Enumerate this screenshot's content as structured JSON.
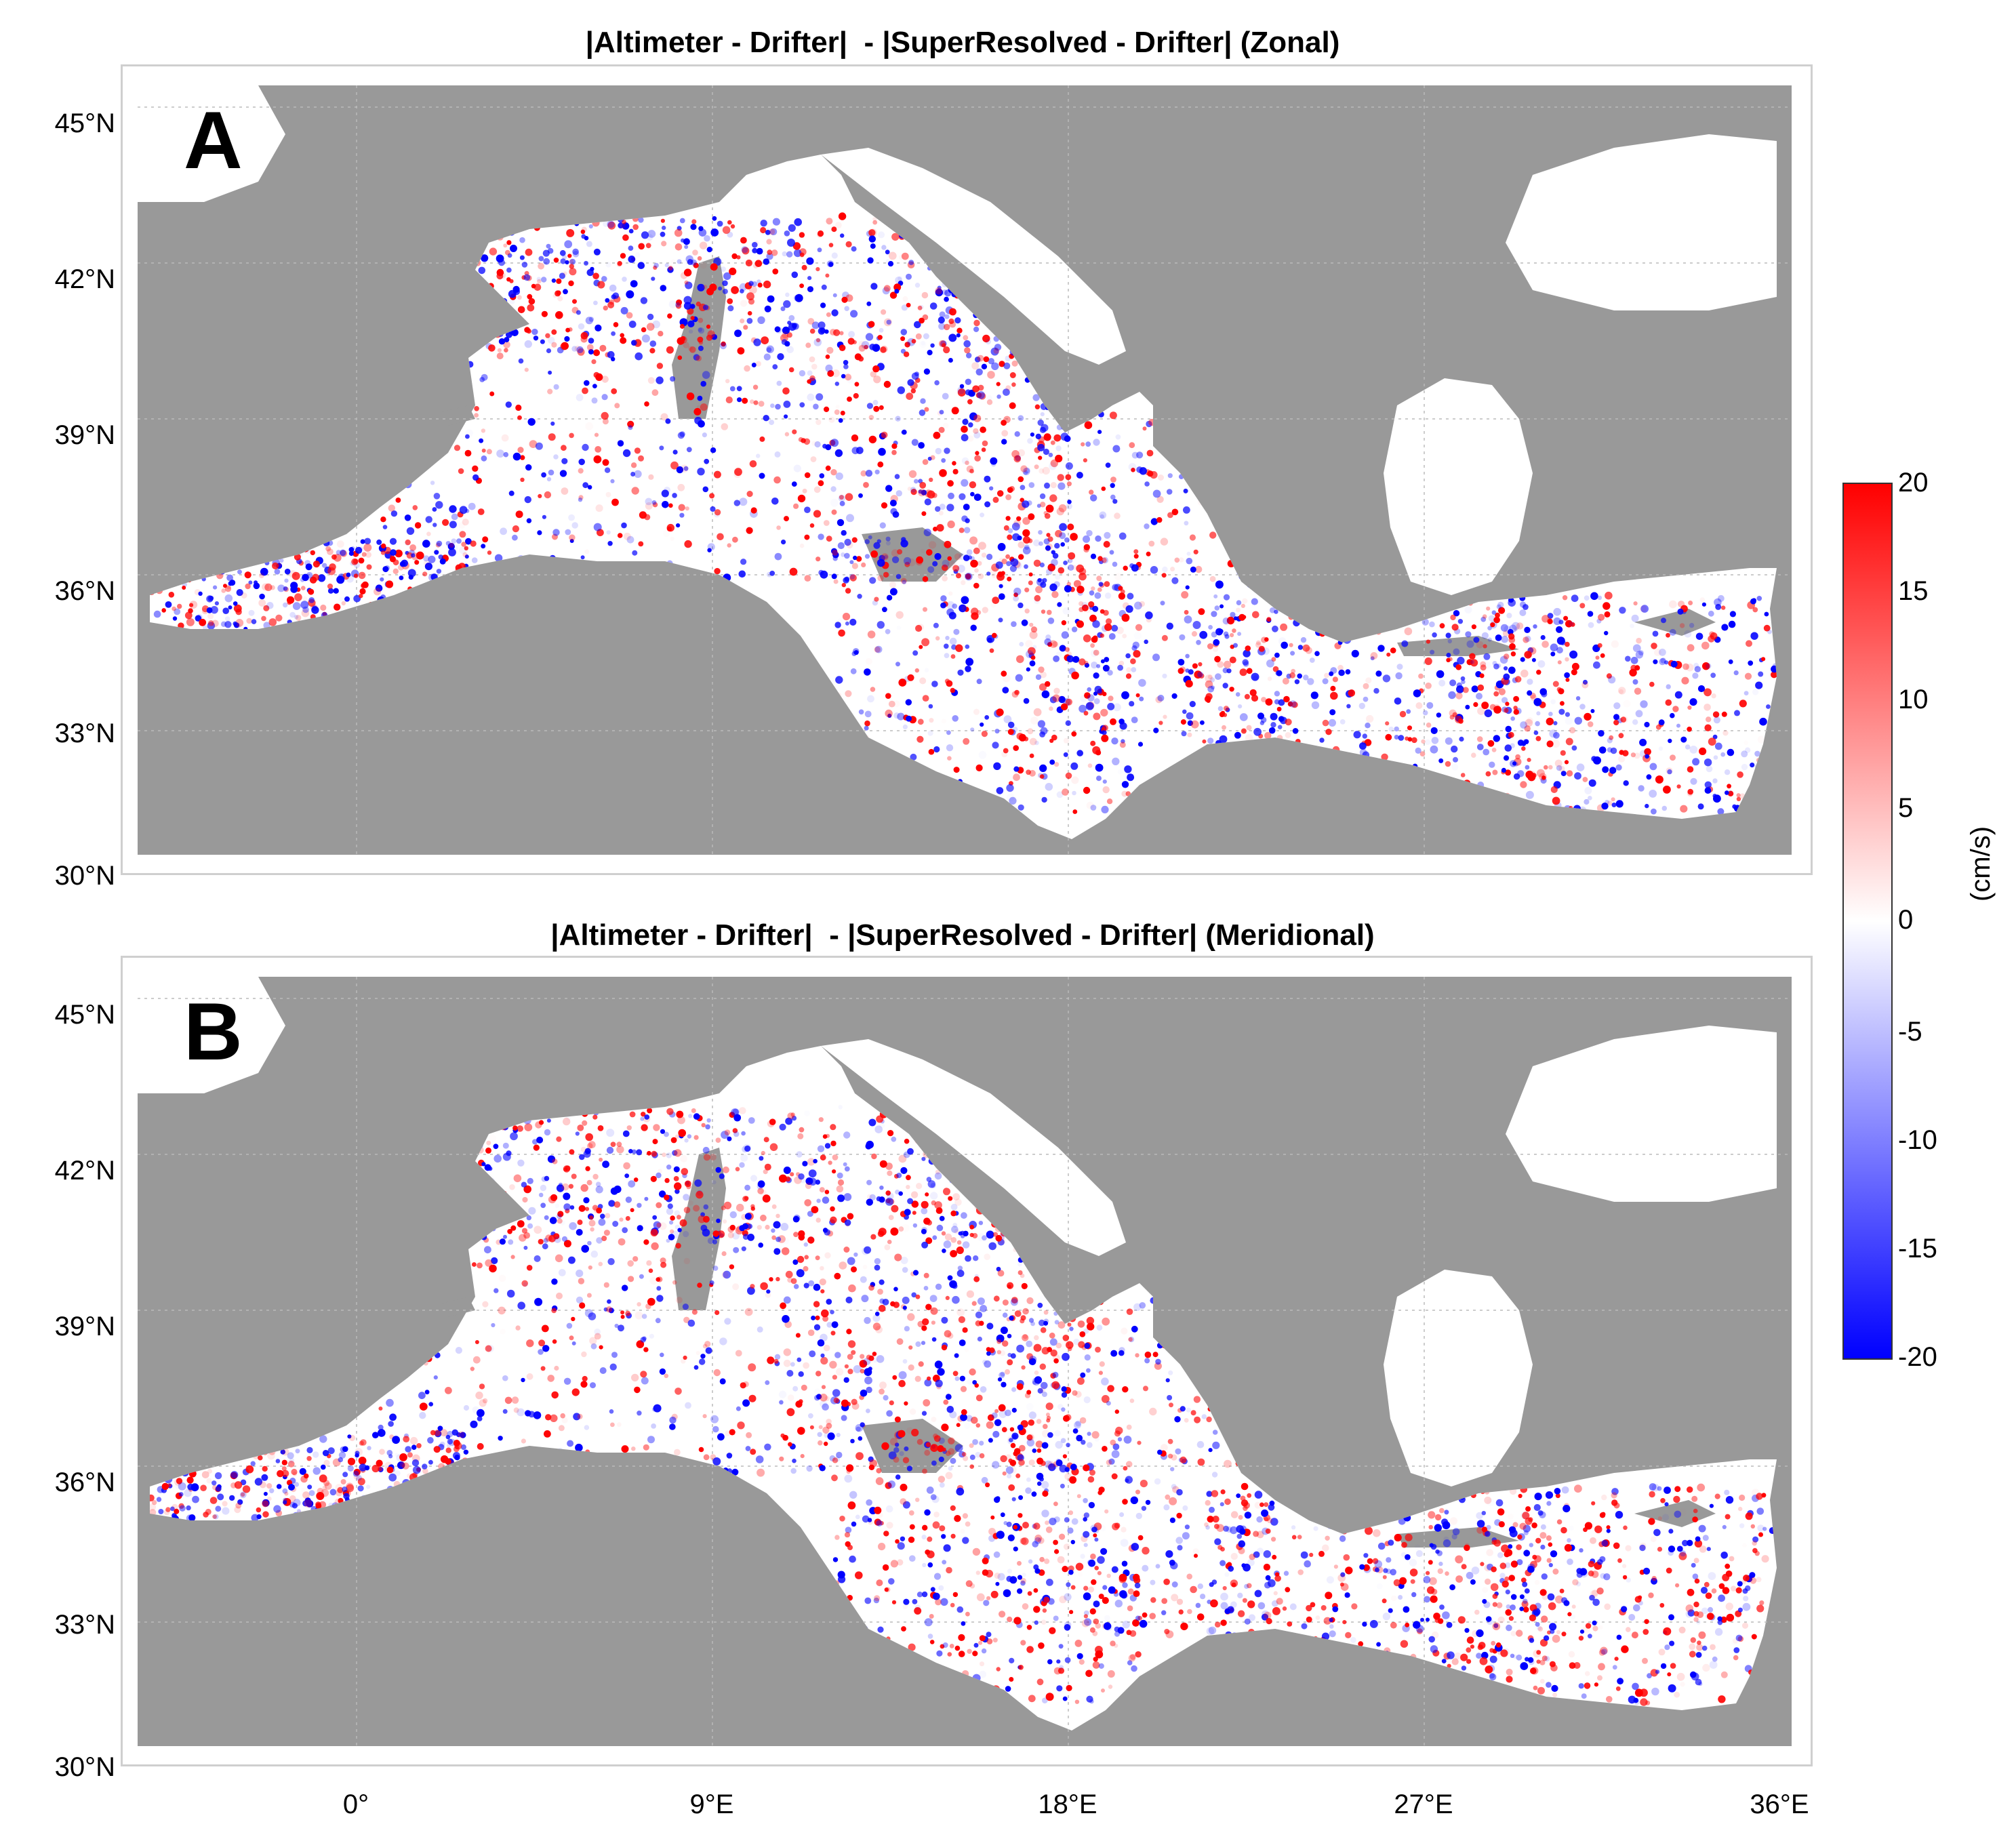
{
  "panels": [
    {
      "letter": "A",
      "title": "|Altimeter - Drifter|  - |SuperResolved - Drifter| (Zonal)"
    },
    {
      "letter": "B",
      "title": "|Altimeter - Drifter|  - |SuperResolved - Drifter| (Meridional)"
    }
  ],
  "lat_ticks": [
    "45°N",
    "42°N",
    "39°N",
    "36°N",
    "33°N",
    "30°N"
  ],
  "lon_ticks": [
    "0°",
    "9°E",
    "18°E",
    "27°E",
    "36°E"
  ],
  "colorbar": {
    "ticks": [
      "20",
      "15",
      "10",
      "5",
      "0",
      "-5",
      "-10",
      "-15",
      "-20"
    ],
    "unit": "(cm/s)",
    "range": [
      -20,
      20
    ],
    "colors": {
      "max": "#ff0000",
      "mid": "#ffffff",
      "min": "#0000ff"
    }
  },
  "map_colors": {
    "land": "#999999",
    "sea": "#ffffff"
  }
}
